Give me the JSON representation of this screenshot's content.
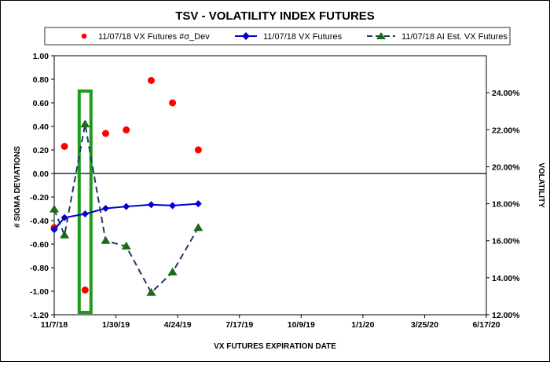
{
  "chart_data": {
    "type": "line",
    "title": "TSV - VOLATILITY INDEX FUTURES",
    "xlabel": "VX FUTURES  EXPIRATION  DATE",
    "ylabel": "# SIGMA  DEVIATIONS",
    "y2label": "VOLATILITY",
    "x_range": [
      "11/7/18",
      "6/17/20"
    ],
    "x_tick_labels": [
      "11/7/18",
      "1/30/19",
      "4/24/19",
      "7/17/19",
      "10/9/19",
      "1/1/20",
      "3/25/20",
      "6/17/20"
    ],
    "ylim": [
      -1.2,
      1.0
    ],
    "y_tick_labels": [
      "-1.20",
      "-1.00",
      "-0.80",
      "-0.60",
      "-0.40",
      "-0.20",
      "0.00",
      "0.20",
      "0.40",
      "0.60",
      "0.80",
      "1.00"
    ],
    "y2lim": [
      12,
      26
    ],
    "y2_tick_labels": [
      "12.00%",
      "14.00%",
      "16.00%",
      "18.00%",
      "20.00%",
      "22.00%",
      "24.00%"
    ],
    "grid": false,
    "legend_position": "top",
    "series": [
      {
        "name": "11/07/18 VX Futures #σ_Dev",
        "axis": "left",
        "style": "marker",
        "color": "#ff0000",
        "points": [
          [
            "2018-11-07",
            -0.46
          ],
          [
            "2018-11-21",
            0.23
          ],
          [
            "2018-12-19",
            -0.99
          ],
          [
            "2019-01-16",
            0.34
          ],
          [
            "2019-02-13",
            0.37
          ],
          [
            "2019-03-19",
            0.79
          ],
          [
            "2019-04-17",
            0.6
          ],
          [
            "2019-05-22",
            0.2
          ]
        ]
      },
      {
        "name": "11/07/18 VX Futures",
        "axis": "right",
        "style": "line-diamond",
        "color": "#0000cc",
        "points": [
          [
            "2018-11-07",
            16.6
          ],
          [
            "2018-11-21",
            17.25
          ],
          [
            "2018-12-19",
            17.45
          ],
          [
            "2019-01-16",
            17.75
          ],
          [
            "2019-02-13",
            17.85
          ],
          [
            "2019-03-19",
            17.95
          ],
          [
            "2019-04-17",
            17.9
          ],
          [
            "2019-05-22",
            18.0
          ]
        ]
      },
      {
        "name": "11/07/18 AI Est. VX Futures",
        "axis": "right",
        "style": "dashed-triangle",
        "color": "#1f3864",
        "marker_color": "#1a6b1a",
        "points": [
          [
            "2018-11-07",
            17.7
          ],
          [
            "2018-11-21",
            16.3
          ],
          [
            "2018-12-19",
            22.3
          ],
          [
            "2019-01-16",
            16.0
          ],
          [
            "2019-02-13",
            15.7
          ],
          [
            "2019-03-19",
            13.2
          ],
          [
            "2019-04-17",
            14.3
          ],
          [
            "2019-05-22",
            16.7
          ]
        ]
      }
    ],
    "annotations": [
      {
        "type": "highlight-box",
        "color": "#1a9c1a",
        "x_from": "2018-12-11",
        "x_to": "2018-12-27",
        "y_from": -1.18,
        "y_to": 0.7
      }
    ]
  }
}
